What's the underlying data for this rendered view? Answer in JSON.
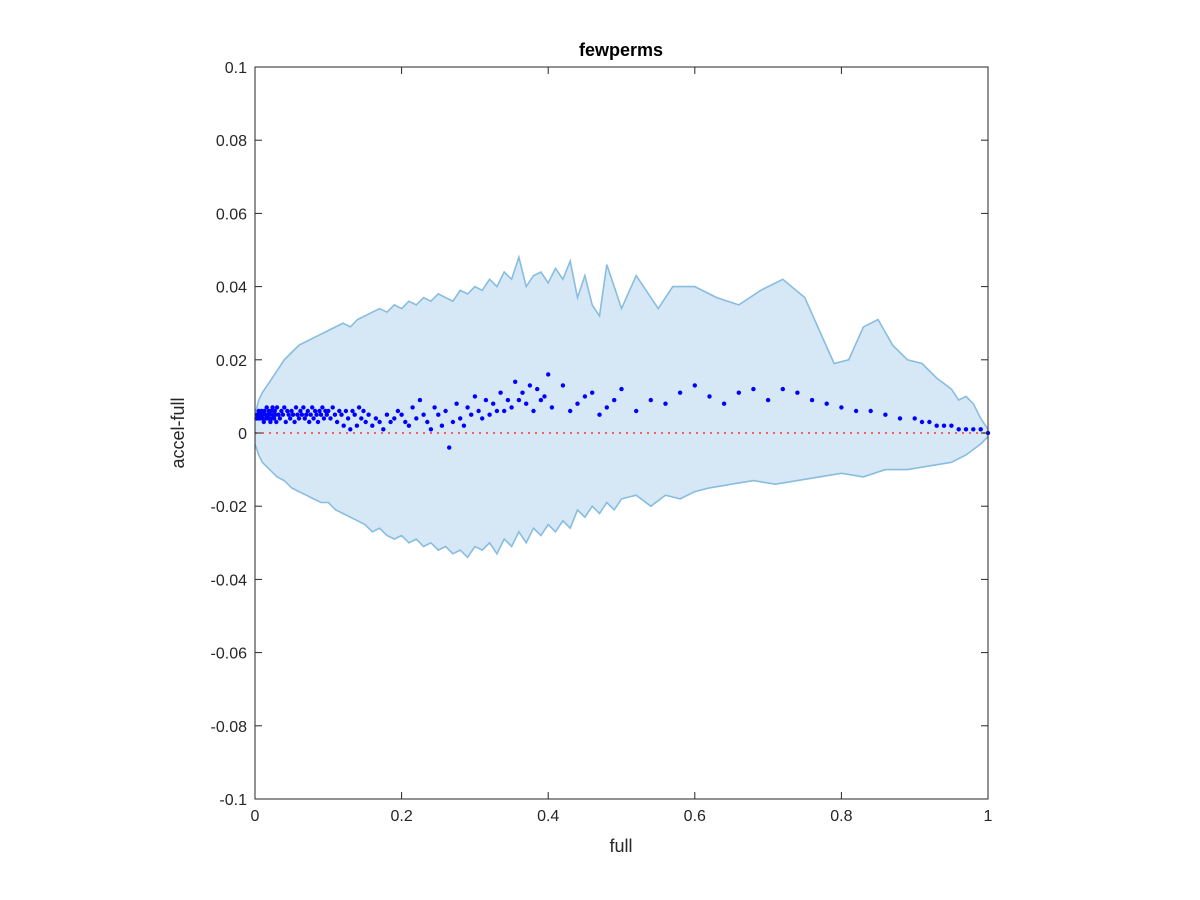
{
  "chart_data": {
    "type": "scatter",
    "title": "fewperms",
    "xlabel": "full",
    "ylabel": "accel-full",
    "xlim": [
      0,
      1
    ],
    "ylim": [
      -0.1,
      0.1
    ],
    "xticks": [
      "0",
      "0.2",
      "0.4",
      "0.6",
      "0.8",
      "1"
    ],
    "yticks": [
      "-0.1",
      "-0.08",
      "-0.06",
      "-0.04",
      "-0.02",
      "0",
      "0.02",
      "0.04",
      "0.06",
      "0.08",
      "0.1"
    ],
    "grid": false,
    "legend": "none",
    "colors": {
      "band_fill": "#d6e8f5",
      "band_edge": "#88bde0",
      "points": "#0000ff",
      "reference": "#ff3333"
    },
    "band_upper": [
      [
        0,
        0.005
      ],
      [
        0.005,
        0.009
      ],
      [
        0.01,
        0.011
      ],
      [
        0.02,
        0.014
      ],
      [
        0.03,
        0.017
      ],
      [
        0.04,
        0.02
      ],
      [
        0.05,
        0.022
      ],
      [
        0.06,
        0.024
      ],
      [
        0.07,
        0.025
      ],
      [
        0.08,
        0.026
      ],
      [
        0.09,
        0.027
      ],
      [
        0.1,
        0.028
      ],
      [
        0.11,
        0.029
      ],
      [
        0.12,
        0.03
      ],
      [
        0.13,
        0.029
      ],
      [
        0.14,
        0.031
      ],
      [
        0.15,
        0.032
      ],
      [
        0.16,
        0.033
      ],
      [
        0.17,
        0.034
      ],
      [
        0.18,
        0.033
      ],
      [
        0.19,
        0.035
      ],
      [
        0.2,
        0.034
      ],
      [
        0.21,
        0.036
      ],
      [
        0.22,
        0.035
      ],
      [
        0.23,
        0.037
      ],
      [
        0.24,
        0.036
      ],
      [
        0.25,
        0.038
      ],
      [
        0.26,
        0.037
      ],
      [
        0.27,
        0.036
      ],
      [
        0.28,
        0.039
      ],
      [
        0.29,
        0.038
      ],
      [
        0.3,
        0.04
      ],
      [
        0.31,
        0.039
      ],
      [
        0.32,
        0.042
      ],
      [
        0.33,
        0.04
      ],
      [
        0.34,
        0.044
      ],
      [
        0.35,
        0.042
      ],
      [
        0.36,
        0.048
      ],
      [
        0.37,
        0.04
      ],
      [
        0.38,
        0.043
      ],
      [
        0.39,
        0.044
      ],
      [
        0.4,
        0.041
      ],
      [
        0.41,
        0.045
      ],
      [
        0.42,
        0.042
      ],
      [
        0.43,
        0.047
      ],
      [
        0.44,
        0.037
      ],
      [
        0.45,
        0.043
      ],
      [
        0.46,
        0.035
      ],
      [
        0.47,
        0.032
      ],
      [
        0.48,
        0.046
      ],
      [
        0.49,
        0.04
      ],
      [
        0.5,
        0.034
      ],
      [
        0.52,
        0.043
      ],
      [
        0.55,
        0.034
      ],
      [
        0.57,
        0.04
      ],
      [
        0.6,
        0.04
      ],
      [
        0.63,
        0.037
      ],
      [
        0.66,
        0.035
      ],
      [
        0.69,
        0.039
      ],
      [
        0.72,
        0.042
      ],
      [
        0.75,
        0.037
      ],
      [
        0.77,
        0.028
      ],
      [
        0.79,
        0.019
      ],
      [
        0.81,
        0.02
      ],
      [
        0.83,
        0.029
      ],
      [
        0.85,
        0.031
      ],
      [
        0.87,
        0.024
      ],
      [
        0.89,
        0.02
      ],
      [
        0.91,
        0.019
      ],
      [
        0.93,
        0.015
      ],
      [
        0.95,
        0.012
      ],
      [
        0.96,
        0.009
      ],
      [
        0.97,
        0.01
      ],
      [
        0.98,
        0.008
      ],
      [
        0.99,
        0.004
      ],
      [
        1,
        0.001
      ]
    ],
    "band_lower": [
      [
        0,
        -0.003
      ],
      [
        0.005,
        -0.006
      ],
      [
        0.01,
        -0.008
      ],
      [
        0.02,
        -0.01
      ],
      [
        0.03,
        -0.012
      ],
      [
        0.04,
        -0.013
      ],
      [
        0.05,
        -0.015
      ],
      [
        0.06,
        -0.016
      ],
      [
        0.07,
        -0.017
      ],
      [
        0.08,
        -0.018
      ],
      [
        0.09,
        -0.019
      ],
      [
        0.1,
        -0.019
      ],
      [
        0.11,
        -0.021
      ],
      [
        0.12,
        -0.022
      ],
      [
        0.13,
        -0.023
      ],
      [
        0.14,
        -0.024
      ],
      [
        0.15,
        -0.025
      ],
      [
        0.16,
        -0.027
      ],
      [
        0.17,
        -0.026
      ],
      [
        0.18,
        -0.028
      ],
      [
        0.19,
        -0.029
      ],
      [
        0.2,
        -0.028
      ],
      [
        0.21,
        -0.03
      ],
      [
        0.22,
        -0.029
      ],
      [
        0.23,
        -0.031
      ],
      [
        0.24,
        -0.03
      ],
      [
        0.25,
        -0.032
      ],
      [
        0.26,
        -0.031
      ],
      [
        0.27,
        -0.033
      ],
      [
        0.28,
        -0.032
      ],
      [
        0.29,
        -0.034
      ],
      [
        0.3,
        -0.031
      ],
      [
        0.31,
        -0.032
      ],
      [
        0.32,
        -0.03
      ],
      [
        0.33,
        -0.033
      ],
      [
        0.34,
        -0.029
      ],
      [
        0.35,
        -0.031
      ],
      [
        0.36,
        -0.027
      ],
      [
        0.37,
        -0.03
      ],
      [
        0.38,
        -0.026
      ],
      [
        0.39,
        -0.028
      ],
      [
        0.4,
        -0.025
      ],
      [
        0.41,
        -0.027
      ],
      [
        0.42,
        -0.024
      ],
      [
        0.43,
        -0.026
      ],
      [
        0.44,
        -0.021
      ],
      [
        0.45,
        -0.023
      ],
      [
        0.46,
        -0.02
      ],
      [
        0.47,
        -0.022
      ],
      [
        0.48,
        -0.019
      ],
      [
        0.49,
        -0.021
      ],
      [
        0.5,
        -0.018
      ],
      [
        0.52,
        -0.017
      ],
      [
        0.54,
        -0.02
      ],
      [
        0.56,
        -0.017
      ],
      [
        0.58,
        -0.018
      ],
      [
        0.6,
        -0.016
      ],
      [
        0.62,
        -0.015
      ],
      [
        0.65,
        -0.014
      ],
      [
        0.68,
        -0.013
      ],
      [
        0.71,
        -0.014
      ],
      [
        0.74,
        -0.013
      ],
      [
        0.77,
        -0.012
      ],
      [
        0.8,
        -0.011
      ],
      [
        0.83,
        -0.012
      ],
      [
        0.86,
        -0.01
      ],
      [
        0.89,
        -0.01
      ],
      [
        0.92,
        -0.009
      ],
      [
        0.95,
        -0.008
      ],
      [
        0.97,
        -0.006
      ],
      [
        0.99,
        -0.003
      ],
      [
        1,
        -0.001
      ]
    ],
    "points": [
      [
        0.002,
        0.004
      ],
      [
        0.003,
        0.005
      ],
      [
        0.004,
        0.004
      ],
      [
        0.005,
        0.006
      ],
      [
        0.006,
        0.005
      ],
      [
        0.007,
        0.004
      ],
      [
        0.008,
        0.005
      ],
      [
        0.009,
        0.006
      ],
      [
        0.01,
        0.004
      ],
      [
        0.011,
        0.005
      ],
      [
        0.012,
        0.003
      ],
      [
        0.013,
        0.006
      ],
      [
        0.014,
        0.005
      ],
      [
        0.015,
        0.004
      ],
      [
        0.016,
        0.007
      ],
      [
        0.017,
        0.005
      ],
      [
        0.018,
        0.004
      ],
      [
        0.019,
        0.006
      ],
      [
        0.02,
        0.005
      ],
      [
        0.021,
        0.003
      ],
      [
        0.022,
        0.006
      ],
      [
        0.023,
        0.004
      ],
      [
        0.024,
        0.007
      ],
      [
        0.025,
        0.005
      ],
      [
        0.026,
        0.004
      ],
      [
        0.027,
        0.006
      ],
      [
        0.028,
        0.005
      ],
      [
        0.029,
        0.003
      ],
      [
        0.03,
        0.007
      ],
      [
        0.032,
        0.005
      ],
      [
        0.034,
        0.004
      ],
      [
        0.036,
        0.006
      ],
      [
        0.038,
        0.005
      ],
      [
        0.04,
        0.007
      ],
      [
        0.042,
        0.003
      ],
      [
        0.044,
        0.006
      ],
      [
        0.046,
        0.005
      ],
      [
        0.048,
        0.004
      ],
      [
        0.05,
        0.006
      ],
      [
        0.052,
        0.005
      ],
      [
        0.054,
        0.003
      ],
      [
        0.056,
        0.007
      ],
      [
        0.058,
        0.005
      ],
      [
        0.06,
        0.004
      ],
      [
        0.062,
        0.006
      ],
      [
        0.064,
        0.005
      ],
      [
        0.066,
        0.007
      ],
      [
        0.068,
        0.004
      ],
      [
        0.07,
        0.005
      ],
      [
        0.072,
        0.006
      ],
      [
        0.074,
        0.003
      ],
      [
        0.076,
        0.005
      ],
      [
        0.078,
        0.007
      ],
      [
        0.08,
        0.004
      ],
      [
        0.082,
        0.006
      ],
      [
        0.084,
        0.005
      ],
      [
        0.086,
        0.003
      ],
      [
        0.088,
        0.006
      ],
      [
        0.09,
        0.005
      ],
      [
        0.092,
        0.007
      ],
      [
        0.094,
        0.004
      ],
      [
        0.096,
        0.006
      ],
      [
        0.098,
        0.005
      ],
      [
        0.1,
        0.006
      ],
      [
        0.103,
        0.004
      ],
      [
        0.106,
        0.007
      ],
      [
        0.109,
        0.005
      ],
      [
        0.112,
        0.003
      ],
      [
        0.115,
        0.006
      ],
      [
        0.118,
        0.005
      ],
      [
        0.121,
        0.002
      ],
      [
        0.124,
        0.006
      ],
      [
        0.127,
        0.004
      ],
      [
        0.13,
        0.001
      ],
      [
        0.133,
        0.006
      ],
      [
        0.136,
        0.005
      ],
      [
        0.139,
        0.002
      ],
      [
        0.142,
        0.007
      ],
      [
        0.145,
        0.004
      ],
      [
        0.148,
        0.006
      ],
      [
        0.151,
        0.003
      ],
      [
        0.155,
        0.005
      ],
      [
        0.16,
        0.002
      ],
      [
        0.165,
        0.004
      ],
      [
        0.17,
        0.003
      ],
      [
        0.175,
        0.001
      ],
      [
        0.18,
        0.005
      ],
      [
        0.185,
        0.003
      ],
      [
        0.19,
        0.004
      ],
      [
        0.195,
        0.006
      ],
      [
        0.2,
        0.005
      ],
      [
        0.205,
        0.003
      ],
      [
        0.21,
        0.002
      ],
      [
        0.215,
        0.007
      ],
      [
        0.22,
        0.004
      ],
      [
        0.225,
        0.009
      ],
      [
        0.23,
        0.005
      ],
      [
        0.235,
        0.003
      ],
      [
        0.24,
        0.001
      ],
      [
        0.245,
        0.007
      ],
      [
        0.25,
        0.005
      ],
      [
        0.255,
        0.002
      ],
      [
        0.26,
        0.006
      ],
      [
        0.265,
        -0.004
      ],
      [
        0.27,
        0.003
      ],
      [
        0.275,
        0.008
      ],
      [
        0.28,
        0.004
      ],
      [
        0.285,
        0.002
      ],
      [
        0.29,
        0.007
      ],
      [
        0.295,
        0.005
      ],
      [
        0.3,
        0.01
      ],
      [
        0.305,
        0.006
      ],
      [
        0.31,
        0.004
      ],
      [
        0.315,
        0.009
      ],
      [
        0.32,
        0.005
      ],
      [
        0.325,
        0.008
      ],
      [
        0.33,
        0.006
      ],
      [
        0.335,
        0.011
      ],
      [
        0.34,
        0.006
      ],
      [
        0.345,
        0.009
      ],
      [
        0.35,
        0.007
      ],
      [
        0.355,
        0.014
      ],
      [
        0.36,
        0.009
      ],
      [
        0.365,
        0.011
      ],
      [
        0.37,
        0.008
      ],
      [
        0.375,
        0.013
      ],
      [
        0.38,
        0.006
      ],
      [
        0.385,
        0.012
      ],
      [
        0.39,
        0.009
      ],
      [
        0.395,
        0.01
      ],
      [
        0.4,
        0.016
      ],
      [
        0.405,
        0.007
      ],
      [
        0.42,
        0.013
      ],
      [
        0.43,
        0.006
      ],
      [
        0.44,
        0.008
      ],
      [
        0.45,
        0.01
      ],
      [
        0.46,
        0.011
      ],
      [
        0.47,
        0.005
      ],
      [
        0.48,
        0.007
      ],
      [
        0.49,
        0.009
      ],
      [
        0.5,
        0.012
      ],
      [
        0.52,
        0.006
      ],
      [
        0.54,
        0.009
      ],
      [
        0.56,
        0.008
      ],
      [
        0.58,
        0.011
      ],
      [
        0.6,
        0.013
      ],
      [
        0.62,
        0.01
      ],
      [
        0.64,
        0.008
      ],
      [
        0.66,
        0.011
      ],
      [
        0.68,
        0.012
      ],
      [
        0.7,
        0.009
      ],
      [
        0.72,
        0.012
      ],
      [
        0.74,
        0.011
      ],
      [
        0.76,
        0.009
      ],
      [
        0.78,
        0.008
      ],
      [
        0.8,
        0.007
      ],
      [
        0.82,
        0.006
      ],
      [
        0.84,
        0.006
      ],
      [
        0.86,
        0.005
      ],
      [
        0.88,
        0.004
      ],
      [
        0.9,
        0.004
      ],
      [
        0.91,
        0.003
      ],
      [
        0.92,
        0.003
      ],
      [
        0.93,
        0.002
      ],
      [
        0.94,
        0.002
      ],
      [
        0.95,
        0.002
      ],
      [
        0.96,
        0.001
      ],
      [
        0.97,
        0.001
      ],
      [
        0.98,
        0.001
      ],
      [
        0.99,
        0.001
      ],
      [
        1,
        0
      ]
    ]
  }
}
